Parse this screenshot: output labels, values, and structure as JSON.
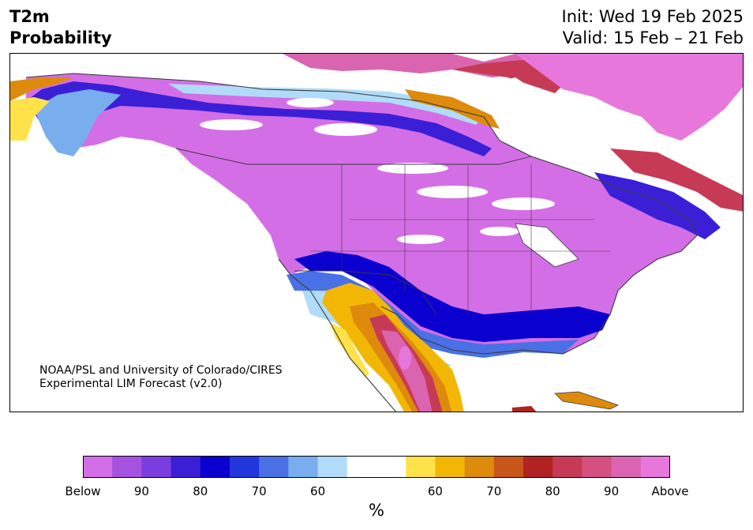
{
  "header": {
    "variable": "T2m",
    "product": "Probability",
    "init": "Init: Wed 19 Feb 2025",
    "valid": "Valid: 15 Feb – 21 Feb"
  },
  "credit": {
    "line1": "NOAA/PSL and University of Colorado/CIRES",
    "line2": "Experimental LIM Forecast (v2.0)"
  },
  "colorbar": {
    "units": "%",
    "colors": [
      "#d46ee6",
      "#a652e0",
      "#7a3de0",
      "#3b1fd6",
      "#0a00d0",
      "#2236dc",
      "#4a70e6",
      "#78aeee",
      "#b0dcfa",
      "#ffffff",
      "#ffffff",
      "#ffe24a",
      "#f2b705",
      "#de8a0c",
      "#c8561a",
      "#b22222",
      "#c73a55",
      "#d4517f",
      "#db64b0",
      "#e877dc"
    ],
    "tick_labels": [
      "Below",
      "90",
      "80",
      "70",
      "60",
      "60",
      "70",
      "80",
      "90",
      "Above"
    ]
  },
  "map": {
    "legend_colors": {
      "below_high": "#d46ee6",
      "below_mid": "#3b1fd6",
      "below_low": "#78aeee",
      "neutral": "#ffffff",
      "above_low": "#ffe24a",
      "above_mid": "#de8a0c",
      "above_high": "#e877dc",
      "above_red": "#c73a55",
      "coast": "#3a3a3a"
    }
  }
}
